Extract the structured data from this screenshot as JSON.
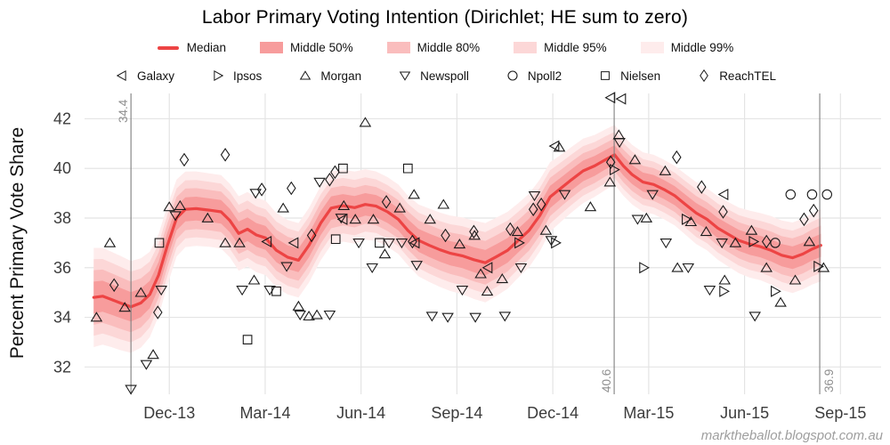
{
  "title": "Labor Primary Voting Intention (Dirichlet; HE sum to zero)",
  "watermark": "marktheballot.blogspot.com.au",
  "colors": {
    "median": "#ed4444",
    "bands": [
      "#feecec",
      "#fcd7d7",
      "#fabdbd",
      "#f79c9c"
    ],
    "gridline": "#e4e4e4",
    "reference_line": "#7f7f7f",
    "reference_label": "#8f8f8f",
    "marker_stroke": "#1a1a1a",
    "tick_label": "#3c3c3c",
    "watermark": "#9e9e9e"
  },
  "chart_data": {
    "type": "line",
    "title": "Labor Primary Voting Intention (Dirichlet; HE sum to zero)",
    "xlabel": "",
    "ylabel": "Percent Primary Vote Share",
    "xlim": [
      2013.696,
      2015.773
    ],
    "ylim": [
      30.9,
      43.02
    ],
    "grid": "on",
    "legend_position": "top",
    "y_ticks": [
      {
        "v": 32,
        "label": "32"
      },
      {
        "v": 34,
        "label": "34"
      },
      {
        "v": 36,
        "label": "36"
      },
      {
        "v": 38,
        "label": "38"
      },
      {
        "v": 40,
        "label": "40"
      },
      {
        "v": 42,
        "label": "42"
      }
    ],
    "x_ticks": [
      {
        "v": 2013.917,
        "label": "Dec-13"
      },
      {
        "v": 2014.167,
        "label": "Mar-14"
      },
      {
        "v": 2014.417,
        "label": "Jun-14"
      },
      {
        "v": 2014.667,
        "label": "Sep-14"
      },
      {
        "v": 2014.917,
        "label": "Dec-14"
      },
      {
        "v": 2015.167,
        "label": "Mar-15"
      },
      {
        "v": 2015.417,
        "label": "Jun-15"
      },
      {
        "v": 2015.667,
        "label": "Sep-15"
      }
    ],
    "band_legend": [
      {
        "label": "Median",
        "type": "line"
      },
      {
        "label": "Middle 50%",
        "type": "fill",
        "color": "#f79c9c"
      },
      {
        "label": "Middle 80%",
        "type": "fill",
        "color": "#fabdbd"
      },
      {
        "label": "Middle 95%",
        "type": "fill",
        "color": "#fcd7d7"
      },
      {
        "label": "Middle 99%",
        "type": "fill",
        "color": "#feecec"
      }
    ],
    "band_ratios": [
      1.0,
      0.77,
      0.55,
      0.32
    ],
    "median": [
      [
        2013.72,
        34.8,
        2.0
      ],
      [
        2013.743,
        34.85,
        1.95
      ],
      [
        2013.766,
        34.72,
        1.92
      ],
      [
        2013.789,
        34.58,
        1.9
      ],
      [
        2013.817,
        34.42,
        1.85
      ],
      [
        2013.843,
        34.58,
        1.8
      ],
      [
        2013.866,
        34.92,
        1.72
      ],
      [
        2013.889,
        35.7,
        1.65
      ],
      [
        2013.912,
        36.9,
        1.6
      ],
      [
        2013.936,
        38.0,
        1.55
      ],
      [
        2013.959,
        38.35,
        1.52
      ],
      [
        2013.987,
        38.38,
        1.5
      ],
      [
        2014.021,
        38.32,
        1.48
      ],
      [
        2014.052,
        38.25,
        1.48
      ],
      [
        2014.075,
        37.9,
        1.48
      ],
      [
        2014.098,
        37.38,
        1.5
      ],
      [
        2014.121,
        37.55,
        1.5
      ],
      [
        2014.144,
        37.32,
        1.5
      ],
      [
        2014.168,
        37.2,
        1.5
      ],
      [
        2014.196,
        36.7,
        1.5
      ],
      [
        2014.226,
        36.42,
        1.5
      ],
      [
        2014.254,
        36.3,
        1.5
      ],
      [
        2014.281,
        36.9,
        1.5
      ],
      [
        2014.312,
        37.8,
        1.5
      ],
      [
        2014.339,
        38.4,
        1.48
      ],
      [
        2014.37,
        38.5,
        1.45
      ],
      [
        2014.4,
        38.42,
        1.45
      ],
      [
        2014.428,
        38.55,
        1.42
      ],
      [
        2014.456,
        38.48,
        1.4
      ],
      [
        2014.486,
        38.25,
        1.4
      ],
      [
        2014.514,
        37.95,
        1.4
      ],
      [
        2014.539,
        37.5,
        1.4
      ],
      [
        2014.567,
        37.1,
        1.45
      ],
      [
        2014.595,
        36.9,
        1.48
      ],
      [
        2014.623,
        36.72,
        1.5
      ],
      [
        2014.65,
        36.58,
        1.52
      ],
      [
        2014.681,
        36.48,
        1.55
      ],
      [
        2014.711,
        36.32,
        1.58
      ],
      [
        2014.741,
        36.2,
        1.6
      ],
      [
        2014.771,
        36.45,
        1.58
      ],
      [
        2014.799,
        36.7,
        1.55
      ],
      [
        2014.827,
        37.1,
        1.5
      ],
      [
        2014.855,
        37.5,
        1.48
      ],
      [
        2014.883,
        38.1,
        1.45
      ],
      [
        2014.91,
        38.85,
        1.4
      ],
      [
        2014.938,
        39.2,
        1.35
      ],
      [
        2014.966,
        39.55,
        1.32
      ],
      [
        2014.996,
        39.9,
        1.3
      ],
      [
        2015.026,
        40.1,
        1.25
      ],
      [
        2015.054,
        40.35,
        1.22
      ],
      [
        2015.078,
        40.55,
        1.2
      ],
      [
        2015.101,
        40.1,
        1.2
      ],
      [
        2015.124,
        39.75,
        1.2
      ],
      [
        2015.152,
        39.45,
        1.2
      ],
      [
        2015.18,
        39.35,
        1.2
      ],
      [
        2015.207,
        39.15,
        1.2
      ],
      [
        2015.235,
        38.9,
        1.2
      ],
      [
        2015.263,
        38.55,
        1.22
      ],
      [
        2015.291,
        38.2,
        1.25
      ],
      [
        2015.319,
        37.95,
        1.25
      ],
      [
        2015.347,
        37.6,
        1.28
      ],
      [
        2015.374,
        37.35,
        1.3
      ],
      [
        2015.402,
        37.1,
        1.32
      ],
      [
        2015.43,
        36.95,
        1.35
      ],
      [
        2015.458,
        36.85,
        1.35
      ],
      [
        2015.486,
        36.7,
        1.38
      ],
      [
        2015.514,
        36.5,
        1.4
      ],
      [
        2015.542,
        36.4,
        1.42
      ],
      [
        2015.569,
        36.55,
        1.42
      ],
      [
        2015.593,
        36.75,
        1.43
      ],
      [
        2015.616,
        36.9,
        1.45
      ]
    ],
    "annotations": [
      {
        "x": 2013.817,
        "label": "34.4",
        "label_at": "top",
        "label_side": "left"
      },
      {
        "x": 2015.077,
        "label": "40.6",
        "label_at": "bottom",
        "label_side": "left"
      },
      {
        "x": 2015.613,
        "label": "36.9",
        "label_at": "bottom",
        "label_side": "right"
      }
    ],
    "pollsters": [
      {
        "name": "Galaxy",
        "marker": "triangle-left",
        "points": [
          [
            2014.172,
            37.05
          ],
          [
            2014.242,
            37.0
          ],
          [
            2014.37,
            37.95
          ],
          [
            2014.558,
            37.0
          ],
          [
            2014.748,
            36.0
          ],
          [
            2014.922,
            40.9
          ],
          [
            2015.068,
            42.85
          ],
          [
            2015.096,
            42.8
          ],
          [
            2015.363,
            38.95
          ]
        ]
      },
      {
        "name": "Ipsos",
        "marker": "triangle-right",
        "points": [
          [
            2014.829,
            37.0
          ],
          [
            2014.924,
            37.0
          ],
          [
            2015.077,
            39.95
          ],
          [
            2015.154,
            36.0
          ],
          [
            2015.265,
            37.95
          ],
          [
            2015.363,
            35.05
          ],
          [
            2015.44,
            37.05
          ],
          [
            2015.497,
            35.05
          ],
          [
            2015.609,
            36.05
          ]
        ]
      },
      {
        "name": "Morgan",
        "marker": "triangle-up",
        "points": [
          [
            2013.727,
            34.0
          ],
          [
            2013.762,
            37.0
          ],
          [
            2013.801,
            34.4
          ],
          [
            2013.843,
            35.0
          ],
          [
            2013.875,
            32.5
          ],
          [
            2013.917,
            38.45
          ],
          [
            2013.945,
            38.5
          ],
          [
            2014.017,
            38.0
          ],
          [
            2014.063,
            37.0
          ],
          [
            2014.1,
            37.0
          ],
          [
            2014.138,
            35.5
          ],
          [
            2014.214,
            38.4
          ],
          [
            2014.254,
            34.45
          ],
          [
            2014.281,
            34.05
          ],
          [
            2014.302,
            34.1
          ],
          [
            2014.372,
            38.5
          ],
          [
            2014.402,
            37.95
          ],
          [
            2014.428,
            41.85
          ],
          [
            2014.449,
            37.95
          ],
          [
            2014.479,
            36.55
          ],
          [
            2014.518,
            38.4
          ],
          [
            2014.555,
            38.95
          ],
          [
            2014.597,
            37.95
          ],
          [
            2014.632,
            38.55
          ],
          [
            2014.674,
            36.95
          ],
          [
            2014.713,
            37.3
          ],
          [
            2014.729,
            35.75
          ],
          [
            2014.746,
            35.05
          ],
          [
            2014.785,
            35.55
          ],
          [
            2014.825,
            37.45
          ],
          [
            2014.899,
            37.5
          ],
          [
            2014.934,
            40.85
          ],
          [
            2015.015,
            38.45
          ],
          [
            2015.066,
            39.45
          ],
          [
            2015.089,
            41.35
          ],
          [
            2015.131,
            40.35
          ],
          [
            2015.161,
            38.0
          ],
          [
            2015.21,
            39.9
          ],
          [
            2015.242,
            36.0
          ],
          [
            2015.277,
            37.85
          ],
          [
            2015.317,
            37.45
          ],
          [
            2015.365,
            35.5
          ],
          [
            2015.393,
            37.0
          ],
          [
            2015.435,
            37.5
          ],
          [
            2015.474,
            36.0
          ],
          [
            2015.511,
            34.6
          ],
          [
            2015.549,
            35.5
          ],
          [
            2015.586,
            37.05
          ],
          [
            2015.623,
            36.0
          ]
        ]
      },
      {
        "name": "Newspoll",
        "marker": "triangle-down",
        "points": [
          [
            2013.817,
            31.1
          ],
          [
            2013.857,
            32.1
          ],
          [
            2013.896,
            35.1
          ],
          [
            2013.933,
            38.1
          ],
          [
            2014.107,
            35.1
          ],
          [
            2014.142,
            39.0
          ],
          [
            2014.179,
            35.1
          ],
          [
            2014.223,
            36.05
          ],
          [
            2014.258,
            34.1
          ],
          [
            2014.309,
            39.45
          ],
          [
            2014.335,
            34.1
          ],
          [
            2014.365,
            38.0
          ],
          [
            2014.411,
            37.0
          ],
          [
            2014.446,
            36.0
          ],
          [
            2014.49,
            37.0
          ],
          [
            2014.523,
            37.0
          ],
          [
            2014.562,
            36.1
          ],
          [
            2014.602,
            34.05
          ],
          [
            2014.643,
            34.0
          ],
          [
            2014.681,
            35.1
          ],
          [
            2014.715,
            34.0
          ],
          [
            2014.792,
            34.05
          ],
          [
            2014.834,
            36.0
          ],
          [
            2014.869,
            38.9
          ],
          [
            2014.913,
            37.1
          ],
          [
            2014.948,
            38.95
          ],
          [
            2015.091,
            41.05
          ],
          [
            2015.138,
            37.95
          ],
          [
            2015.177,
            38.95
          ],
          [
            2015.212,
            37.0
          ],
          [
            2015.27,
            36.0
          ],
          [
            2015.326,
            35.1
          ],
          [
            2015.358,
            37.0
          ],
          [
            2015.444,
            34.05
          ]
        ]
      },
      {
        "name": "Npoll2",
        "marker": "circle",
        "points": [
          [
            2015.497,
            37.0
          ],
          [
            2015.537,
            38.95
          ],
          [
            2015.593,
            38.95
          ],
          [
            2015.632,
            38.95
          ]
        ]
      },
      {
        "name": "Nielsen",
        "marker": "square",
        "points": [
          [
            2013.891,
            37.0
          ],
          [
            2014.121,
            33.1
          ],
          [
            2014.196,
            35.05
          ],
          [
            2014.351,
            37.15
          ],
          [
            2014.37,
            40.0
          ],
          [
            2014.465,
            37.0
          ],
          [
            2014.539,
            40.0
          ]
        ]
      },
      {
        "name": "ReachTEL",
        "marker": "diamond",
        "points": [
          [
            2013.773,
            35.3
          ],
          [
            2013.887,
            34.2
          ],
          [
            2013.956,
            40.35
          ],
          [
            2014.063,
            40.55
          ],
          [
            2014.158,
            39.15
          ],
          [
            2014.235,
            39.2
          ],
          [
            2014.288,
            37.3
          ],
          [
            2014.335,
            39.55
          ],
          [
            2014.349,
            39.85
          ],
          [
            2014.483,
            38.65
          ],
          [
            2014.551,
            37.05
          ],
          [
            2014.637,
            37.3
          ],
          [
            2014.711,
            37.45
          ],
          [
            2014.806,
            37.55
          ],
          [
            2014.866,
            38.35
          ],
          [
            2014.887,
            38.55
          ],
          [
            2015.068,
            40.25
          ],
          [
            2015.24,
            40.45
          ],
          [
            2015.305,
            39.25
          ],
          [
            2015.361,
            38.25
          ],
          [
            2015.474,
            37.05
          ],
          [
            2015.572,
            37.95
          ],
          [
            2015.597,
            38.3
          ]
        ]
      }
    ]
  }
}
